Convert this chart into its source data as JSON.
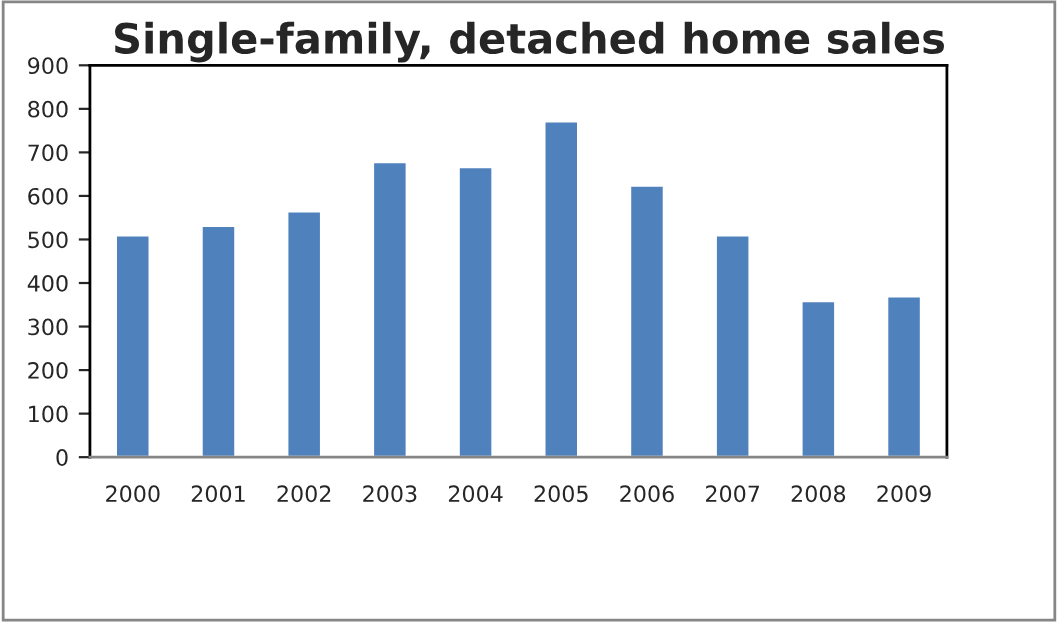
{
  "chart_data": {
    "type": "bar",
    "title": "Single-family, detached home sales",
    "categories": [
      "2000",
      "2001",
      "2002",
      "2003",
      "2004",
      "2005",
      "2006",
      "2007",
      "2008",
      "2009"
    ],
    "values": [
      510,
      532,
      565,
      678,
      667,
      772,
      624,
      510,
      359,
      370
    ],
    "color": "#4f81bd",
    "ylim": [
      0,
      900
    ],
    "yticks": [
      0,
      100,
      200,
      300,
      400,
      500,
      600,
      700,
      800,
      900
    ],
    "grid": false,
    "legend": false
  }
}
